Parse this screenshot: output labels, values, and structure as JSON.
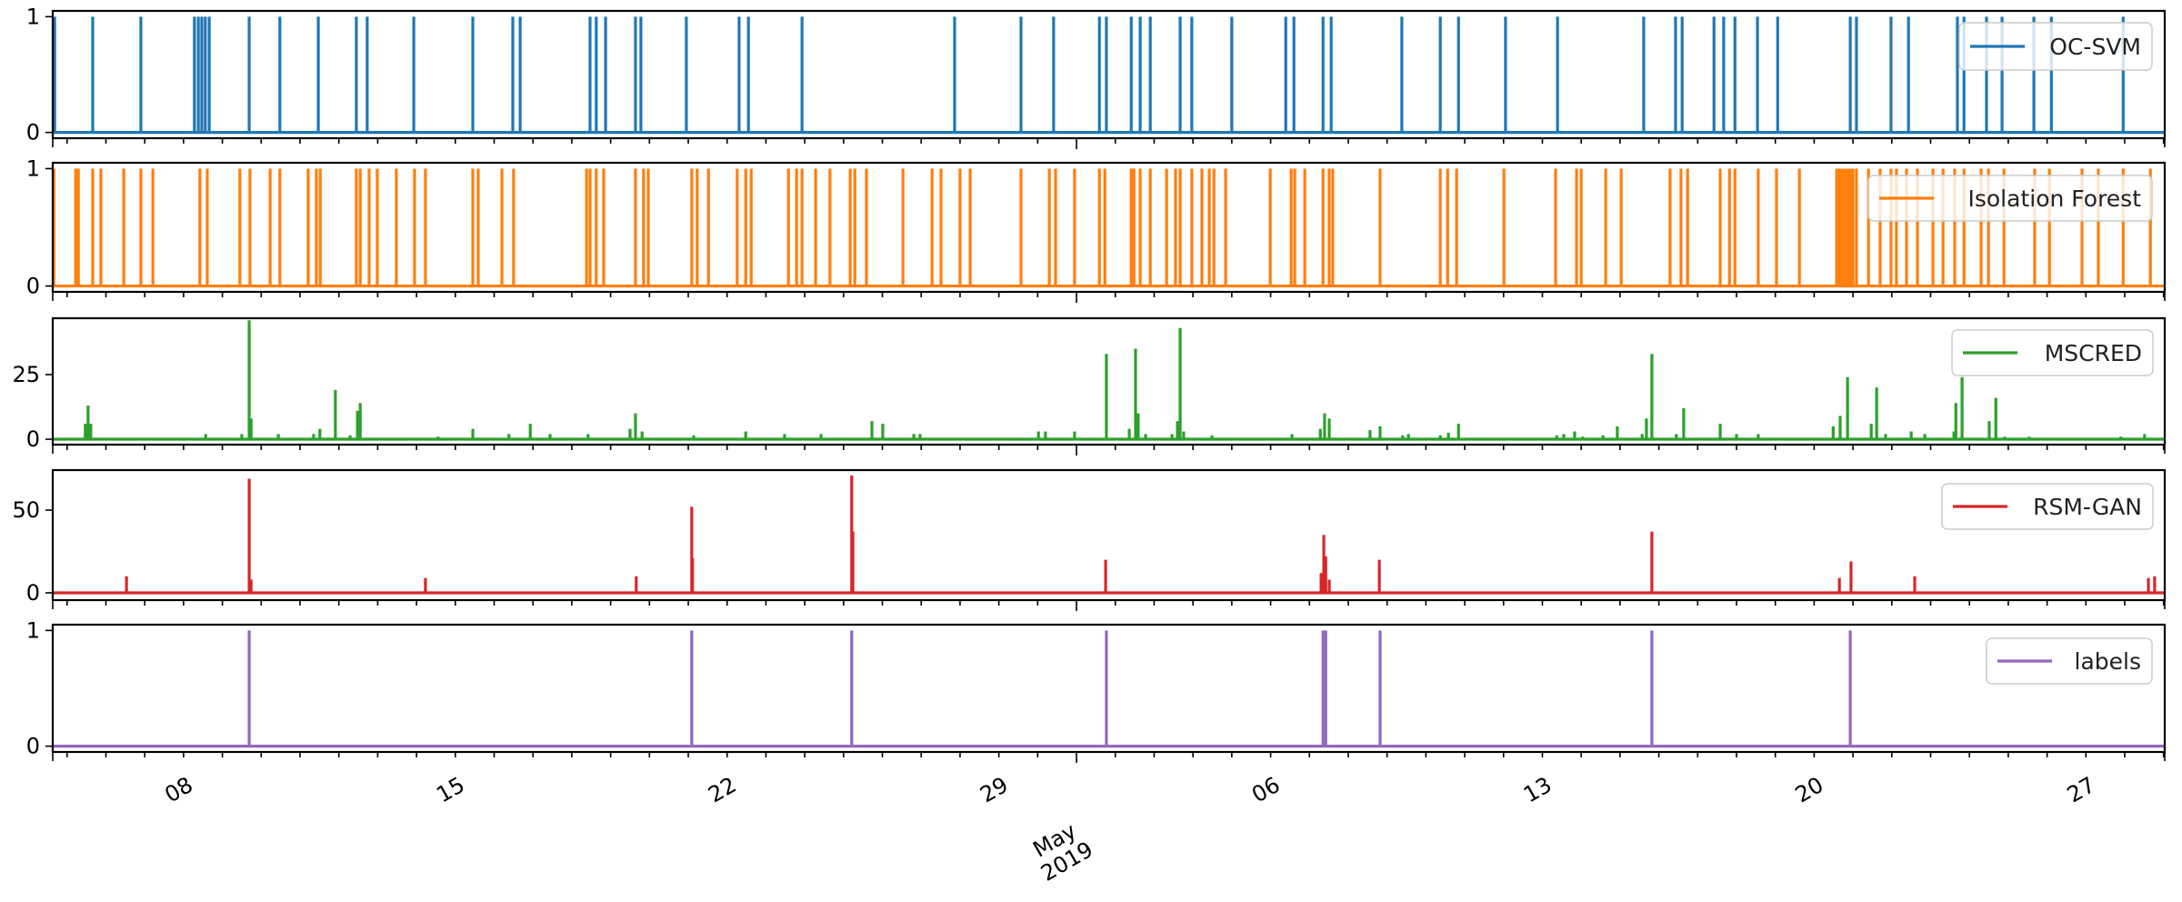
{
  "figure": {
    "x_axis": {
      "date_labels": [
        {
          "day": 7,
          "label": "08"
        },
        {
          "day": 14,
          "label": "15"
        },
        {
          "day": 21,
          "label": "22"
        },
        {
          "day": 28,
          "label": "29"
        },
        {
          "day": 35,
          "label": "06"
        },
        {
          "day": 42,
          "label": "13"
        },
        {
          "day": 49,
          "label": "20"
        },
        {
          "day": 56,
          "label": "27"
        }
      ],
      "month_label": {
        "day": 30,
        "line1": "May",
        "line2": "2019"
      },
      "range_days": [
        3.63,
        58.03
      ],
      "day_origin": "2019-04-01"
    }
  },
  "chart_data": [
    {
      "type": "line",
      "name": "OC-SVM",
      "legend": "OC-SVM",
      "color": "#1f77b4",
      "kind": "binary",
      "yticks": [
        0,
        1
      ],
      "ylim": [
        -0.05,
        1.05
      ],
      "spike_days": [
        3.68,
        4.66,
        5.9,
        7.28,
        7.38,
        7.47,
        7.56,
        7.66,
        8.69,
        9.48,
        10.47,
        11.45,
        11.73,
        12.93,
        14.45,
        15.48,
        15.67,
        17.47,
        17.63,
        17.87,
        18.64,
        18.78,
        19.95,
        21.31,
        21.55,
        22.93,
        26.86,
        28.57,
        29.41,
        30.59,
        30.77,
        31.41,
        31.64,
        31.9,
        32.67,
        32.97,
        34.0,
        35.39,
        35.6,
        36.35,
        36.56,
        38.38,
        39.37,
        39.84,
        41.05,
        42.39,
        44.61,
        45.43,
        45.6,
        46.42,
        46.67,
        46.96,
        47.54,
        48.06,
        49.93,
        50.09,
        50.98,
        51.43,
        52.69,
        52.86,
        53.44,
        53.84,
        54.66,
        55.11,
        56.96
      ]
    },
    {
      "type": "line",
      "name": "Isolation Forest",
      "legend": "Isolation Forest",
      "color": "#ff7f0e",
      "kind": "binary",
      "yticks": [
        0,
        1
      ],
      "ylim": [
        -0.05,
        1.05
      ],
      "spike_days": [
        3.66,
        4.22,
        4.29,
        4.66,
        4.87,
        5.46,
        5.9,
        6.21,
        7.42,
        7.61,
        8.45,
        8.71,
        9.23,
        9.48,
        10.21,
        10.42,
        10.52,
        11.45,
        11.55,
        11.78,
        11.99,
        12.48,
        12.95,
        13.23,
        14.45,
        14.59,
        15.2,
        15.5,
        17.38,
        17.47,
        17.63,
        17.82,
        18.64,
        18.85,
        18.97,
        20.09,
        20.23,
        20.52,
        21.26,
        21.48,
        21.62,
        22.58,
        22.79,
        22.93,
        23.28,
        23.65,
        24.17,
        24.29,
        24.59,
        25.53,
        26.28,
        26.51,
        27.0,
        27.26,
        28.57,
        29.3,
        29.46,
        29.95,
        30.59,
        30.73,
        31.41,
        31.48,
        31.64,
        31.9,
        32.32,
        32.55,
        32.67,
        32.97,
        33.23,
        33.42,
        33.54,
        33.84,
        34.99,
        35.53,
        35.62,
        35.88,
        36.35,
        36.51,
        36.6,
        37.82,
        39.37,
        39.56,
        39.79,
        41.01,
        42.34,
        42.88,
        43.0,
        43.63,
        44.03,
        45.29,
        45.57,
        45.74,
        46.58,
        46.82,
        46.96,
        47.56,
        48.03,
        48.62,
        49.58,
        49.65,
        49.72,
        49.79,
        49.86,
        49.93,
        50.0,
        50.09,
        50.4,
        50.7,
        50.98,
        51.12,
        51.38,
        51.66,
        52.06,
        52.32,
        52.62,
        52.86,
        53.3,
        53.49,
        53.89,
        54.68,
        55.06,
        55.9,
        56.32,
        56.96,
        57.66
      ]
    },
    {
      "type": "line",
      "name": "MSCRED",
      "legend": "MSCRED",
      "color": "#2ca02c",
      "kind": "score",
      "yticks": [
        0,
        25
      ],
      "ylim": [
        -2.1,
        46.8
      ],
      "spikes": [
        {
          "day": 4.47,
          "value": 2
        },
        {
          "day": 4.47,
          "value": 6
        },
        {
          "day": 4.54,
          "value": 13
        },
        {
          "day": 4.61,
          "value": 6
        },
        {
          "day": 7.57,
          "value": 2
        },
        {
          "day": 8.5,
          "value": 2
        },
        {
          "day": 8.69,
          "value": 46
        },
        {
          "day": 8.74,
          "value": 8
        },
        {
          "day": 9.44,
          "value": 2
        },
        {
          "day": 10.35,
          "value": 2
        },
        {
          "day": 10.51,
          "value": 4
        },
        {
          "day": 10.91,
          "value": 19
        },
        {
          "day": 11.29,
          "value": 1.5
        },
        {
          "day": 11.48,
          "value": 11
        },
        {
          "day": 11.55,
          "value": 14
        },
        {
          "day": 13.55,
          "value": 1
        },
        {
          "day": 14.45,
          "value": 4
        },
        {
          "day": 15.38,
          "value": 2
        },
        {
          "day": 15.93,
          "value": 6
        },
        {
          "day": 16.44,
          "value": 2
        },
        {
          "day": 17.42,
          "value": 2
        },
        {
          "day": 18.5,
          "value": 4
        },
        {
          "day": 18.64,
          "value": 10
        },
        {
          "day": 18.81,
          "value": 3
        },
        {
          "day": 20.14,
          "value": 1.5
        },
        {
          "day": 21.48,
          "value": 3
        },
        {
          "day": 22.48,
          "value": 2
        },
        {
          "day": 23.42,
          "value": 2
        },
        {
          "day": 24.73,
          "value": 7
        },
        {
          "day": 25.01,
          "value": 6
        },
        {
          "day": 25.81,
          "value": 2
        },
        {
          "day": 25.97,
          "value": 2
        },
        {
          "day": 29.02,
          "value": 3
        },
        {
          "day": 29.2,
          "value": 3
        },
        {
          "day": 29.95,
          "value": 3
        },
        {
          "day": 30.77,
          "value": 33
        },
        {
          "day": 31.36,
          "value": 4
        },
        {
          "day": 31.52,
          "value": 35
        },
        {
          "day": 31.59,
          "value": 10
        },
        {
          "day": 31.78,
          "value": 2
        },
        {
          "day": 32.46,
          "value": 2
        },
        {
          "day": 32.6,
          "value": 7
        },
        {
          "day": 32.67,
          "value": 43
        },
        {
          "day": 32.76,
          "value": 3
        },
        {
          "day": 33.49,
          "value": 1.5
        },
        {
          "day": 35.55,
          "value": 2
        },
        {
          "day": 36.28,
          "value": 4
        },
        {
          "day": 36.39,
          "value": 10
        },
        {
          "day": 36.51,
          "value": 8
        },
        {
          "day": 37.56,
          "value": 3.5
        },
        {
          "day": 37.82,
          "value": 5
        },
        {
          "day": 38.4,
          "value": 1.5
        },
        {
          "day": 38.55,
          "value": 2
        },
        {
          "day": 39.37,
          "value": 1.5
        },
        {
          "day": 39.58,
          "value": 2.5
        },
        {
          "day": 39.84,
          "value": 6
        },
        {
          "day": 42.37,
          "value": 1.5
        },
        {
          "day": 42.55,
          "value": 2
        },
        {
          "day": 42.83,
          "value": 3
        },
        {
          "day": 43.04,
          "value": 1
        },
        {
          "day": 43.56,
          "value": 1.5
        },
        {
          "day": 43.93,
          "value": 5
        },
        {
          "day": 44.57,
          "value": 2
        },
        {
          "day": 44.68,
          "value": 8
        },
        {
          "day": 44.82,
          "value": 33
        },
        {
          "day": 45.45,
          "value": 2
        },
        {
          "day": 45.64,
          "value": 12
        },
        {
          "day": 46.58,
          "value": 6
        },
        {
          "day": 47.0,
          "value": 2
        },
        {
          "day": 47.56,
          "value": 2
        },
        {
          "day": 49.49,
          "value": 5
        },
        {
          "day": 49.67,
          "value": 9
        },
        {
          "day": 49.86,
          "value": 24
        },
        {
          "day": 50.47,
          "value": 6
        },
        {
          "day": 50.61,
          "value": 20
        },
        {
          "day": 50.84,
          "value": 2
        },
        {
          "day": 51.5,
          "value": 3
        },
        {
          "day": 51.85,
          "value": 2
        },
        {
          "day": 52.6,
          "value": 3
        },
        {
          "day": 52.65,
          "value": 14
        },
        {
          "day": 52.81,
          "value": 24
        },
        {
          "day": 53.51,
          "value": 7
        },
        {
          "day": 53.68,
          "value": 16
        },
        {
          "day": 53.91,
          "value": 1
        },
        {
          "day": 54.54,
          "value": 1
        },
        {
          "day": 56.9,
          "value": 1
        },
        {
          "day": 57.51,
          "value": 2
        }
      ]
    },
    {
      "type": "line",
      "name": "RSM-GAN",
      "legend": "RSM-GAN",
      "color": "#d62728",
      "kind": "score",
      "yticks": [
        0,
        50
      ],
      "ylim": [
        -4.4,
        74.2
      ],
      "spikes": [
        {
          "day": 5.53,
          "value": 10
        },
        {
          "day": 8.69,
          "value": 69
        },
        {
          "day": 8.74,
          "value": 8
        },
        {
          "day": 13.23,
          "value": 9
        },
        {
          "day": 18.66,
          "value": 10
        },
        {
          "day": 20.09,
          "value": 52
        },
        {
          "day": 20.11,
          "value": 21
        },
        {
          "day": 24.21,
          "value": 71
        },
        {
          "day": 24.24,
          "value": 37
        },
        {
          "day": 30.75,
          "value": 20
        },
        {
          "day": 36.3,
          "value": 12
        },
        {
          "day": 36.37,
          "value": 35
        },
        {
          "day": 36.42,
          "value": 22
        },
        {
          "day": 36.51,
          "value": 8
        },
        {
          "day": 37.8,
          "value": 20
        },
        {
          "day": 44.82,
          "value": 37
        },
        {
          "day": 49.65,
          "value": 9
        },
        {
          "day": 49.95,
          "value": 19
        },
        {
          "day": 51.59,
          "value": 10
        },
        {
          "day": 57.61,
          "value": 9
        },
        {
          "day": 57.77,
          "value": 10
        }
      ]
    },
    {
      "type": "line",
      "name": "labels",
      "legend": "labels",
      "color": "#9467bd",
      "kind": "binary",
      "yticks": [
        0,
        1
      ],
      "ylim": [
        -0.05,
        1.05
      ],
      "spike_days": [
        8.69,
        20.09,
        24.21,
        30.77,
        36.35,
        36.42,
        37.82,
        44.82,
        49.93
      ]
    }
  ]
}
